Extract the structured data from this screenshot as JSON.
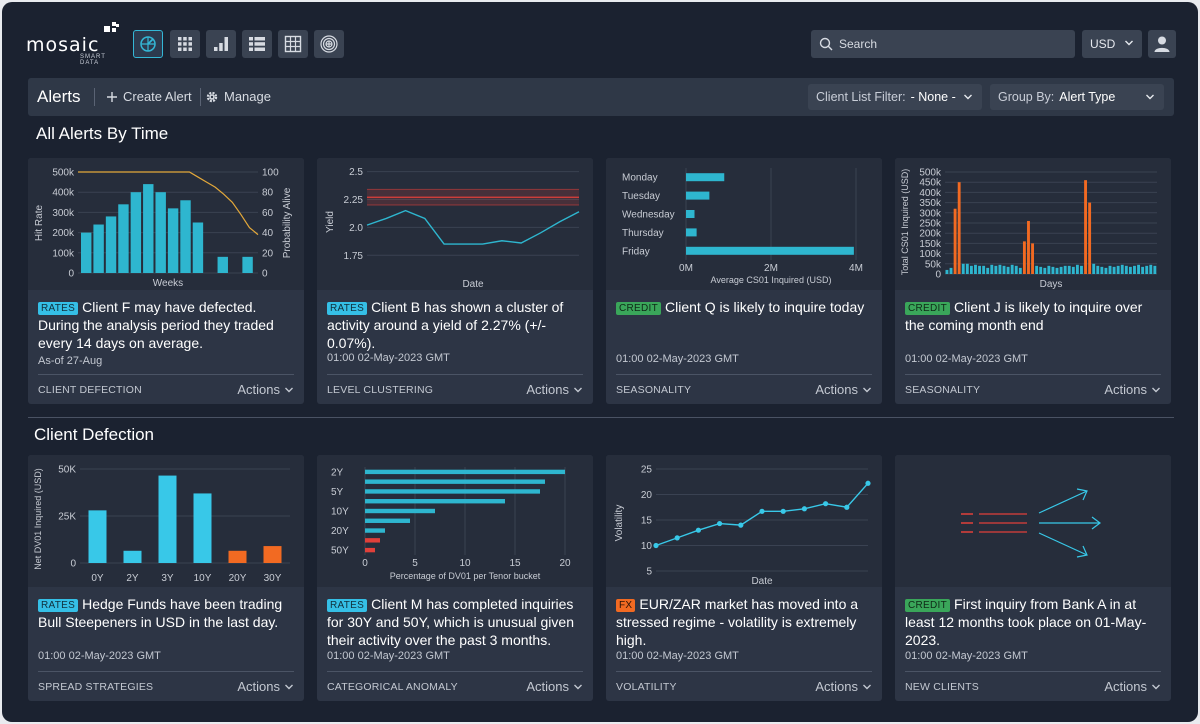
{
  "brand": {
    "name": "mosaic",
    "tagline": "SMART DATA"
  },
  "nav": [
    {
      "name": "radar-icon",
      "active": true
    },
    {
      "name": "grid-dots-icon",
      "active": false
    },
    {
      "name": "bar-chart-icon",
      "active": false
    },
    {
      "name": "list-icon",
      "active": false
    },
    {
      "name": "table-icon",
      "active": false
    },
    {
      "name": "target-icon",
      "active": false
    }
  ],
  "search": {
    "placeholder": "Search"
  },
  "currency": {
    "value": "USD"
  },
  "toolbar": {
    "title": "Alerts",
    "create_label": "Create Alert",
    "manage_label": "Manage",
    "client_filter_label": "Client List Filter:",
    "client_filter_value": "- None -",
    "group_by_label": "Group By:",
    "group_by_value": "Alert Type"
  },
  "sections": [
    {
      "title": "All Alerts By Time",
      "cards": [
        {
          "badge": "RATES",
          "text": "Client F may have defected. During the analysis period they traded every 14 days on average.",
          "meta": "As-of 27-Aug",
          "category": "CLIENT DEFECTION",
          "actions": "Actions"
        },
        {
          "badge": "RATES",
          "text": "Client B has shown a cluster of activity around a yield of 2.27% (+/- 0.07%).",
          "meta": "01:00 02-May-2023 GMT",
          "category": "LEVEL CLUSTERING",
          "actions": "Actions"
        },
        {
          "badge": "CREDIT",
          "text": "Client Q is likely to inquire today",
          "meta": "01:00 02-May-2023 GMT",
          "category": "SEASONALITY",
          "actions": "Actions"
        },
        {
          "badge": "CREDIT",
          "text": "Client J is likely to inquire over the coming month end",
          "meta": "01:00 02-May-2023 GMT",
          "category": "SEASONALITY",
          "actions": "Actions"
        }
      ]
    },
    {
      "title": "Client Defection",
      "cards": [
        {
          "badge": "RATES",
          "text": "Hedge Funds have been trading Bull Steepeners in USD in the last day.",
          "meta": "01:00 02-May-2023 GMT",
          "category": "SPREAD STRATEGIES",
          "actions": "Actions"
        },
        {
          "badge": "RATES",
          "text": "Client M has completed inquiries for 30Y and 50Y, which is unusual given their activity over the past 3 months.",
          "meta": "01:00 02-May-2023 GMT",
          "category": "CATEGORICAL ANOMALY",
          "actions": "Actions"
        },
        {
          "badge": "FX",
          "text": "EUR/ZAR market has moved into a stressed regime - volatility is extremely high.",
          "meta": "01:00 02-May-2023 GMT",
          "category": "VOLATILITY",
          "actions": "Actions"
        },
        {
          "badge": "CREDIT",
          "text": "First inquiry from Bank A in at least 12 months took place on 01-May-2023.",
          "meta": "01:00 02-May-2023 GMT",
          "category": "NEW CLIENTS",
          "actions": "Actions"
        }
      ]
    }
  ],
  "colors": {
    "bg": "#1b2230",
    "card": "#2d3545",
    "chart_bg": "#262d3b",
    "teal": "#2eb6cf",
    "cyan": "#38c8e8",
    "orange": "#f26a22",
    "red": "#e0403a",
    "gold": "#e3a83a"
  },
  "chart_data": [
    {
      "type": "bar",
      "xlabel": "Weeks",
      "ylabel": "Hit Rate",
      "y2label": "Probability Alive",
      "ylim": [
        0,
        500000
      ],
      "y2lim": [
        0,
        100
      ],
      "yticks": [
        "0",
        "100k",
        "200k",
        "300k",
        "400k",
        "500k"
      ],
      "y2ticks": [
        "0",
        "20",
        "40",
        "60",
        "80",
        "100"
      ],
      "values": [
        200000,
        240000,
        280000,
        340000,
        400000,
        440000,
        400000,
        320000,
        360000,
        250000,
        0,
        80000,
        0,
        80000
      ],
      "line": [
        100,
        100,
        100,
        100,
        100,
        100,
        100,
        100,
        100,
        100,
        100,
        100,
        100,
        100,
        95,
        90,
        85,
        78,
        70,
        58,
        45,
        38
      ]
    },
    {
      "type": "line",
      "xlabel": "Date",
      "ylabel": "Yield",
      "ylim": [
        1.6,
        2.55
      ],
      "yticks": [
        "1.75",
        "2.0",
        "2.25",
        "2.5"
      ],
      "band": [
        2.27,
        0.07
      ],
      "values": [
        2.02,
        2.08,
        2.15,
        2.08,
        1.85,
        1.85,
        1.85,
        1.88,
        1.86,
        1.95,
        2.05,
        2.14
      ]
    },
    {
      "type": "bar",
      "orientation": "horizontal",
      "xlabel": "Average CS01 Inquired (USD)",
      "categories": [
        "Monday",
        "Tuesday",
        "Wednesday",
        "Thursday",
        "Friday"
      ],
      "values": [
        900000,
        550000,
        200000,
        250000,
        3950000
      ],
      "xlim": [
        0,
        4000000
      ],
      "xticks": [
        "0M",
        "2M",
        "4M"
      ]
    },
    {
      "type": "bar",
      "xlabel": "Days",
      "ylabel": "Total CS01 Inquired (USD)",
      "ylim": [
        0,
        500000
      ],
      "yticks": [
        "0",
        "50k",
        "100k",
        "150k",
        "200k",
        "250k",
        "300k",
        "350k",
        "400k",
        "450k",
        "500k"
      ],
      "highlight_color": "orange",
      "values": [
        20000,
        30000,
        320000,
        450000,
        50000,
        50000,
        40000,
        45000,
        40000,
        40000,
        30000,
        45000,
        40000,
        45000,
        40000,
        35000,
        45000,
        40000,
        30000,
        160000,
        260000,
        150000,
        40000,
        35000,
        30000,
        40000,
        35000,
        30000,
        35000,
        40000,
        40000,
        35000,
        45000,
        40000,
        460000,
        350000,
        50000,
        40000,
        35000,
        30000,
        40000,
        35000,
        40000,
        45000,
        40000,
        35000,
        40000,
        45000,
        35000,
        40000,
        45000,
        40000
      ],
      "highlights": [
        2,
        3,
        19,
        20,
        21,
        34,
        35
      ]
    },
    {
      "type": "bar",
      "ylabel": "Net DV01 Inquired (USD)",
      "ylim": [
        0,
        50000
      ],
      "yticks": [
        "0",
        "25K",
        "50K"
      ],
      "categories": [
        "0Y",
        "2Y",
        "3Y",
        "10Y",
        "20Y",
        "30Y"
      ],
      "values": [
        28000,
        6500,
        46500,
        37000,
        6500,
        9000
      ],
      "colors": [
        "cyan",
        "cyan",
        "cyan",
        "cyan",
        "orange",
        "orange"
      ]
    },
    {
      "type": "bar",
      "orientation": "horizontal",
      "xlabel": "Percentage of DV01 per Tenor bucket",
      "ylabels": [
        "2Y",
        "5Y",
        "10Y",
        "20Y",
        "50Y"
      ],
      "values": [
        20,
        18,
        17.5,
        14,
        7,
        4.5,
        2,
        1.5,
        1
      ],
      "colors": [
        "teal",
        "teal",
        "teal",
        "teal",
        "teal",
        "teal",
        "teal",
        "red",
        "red"
      ],
      "xlim": [
        0,
        20
      ],
      "xticks": [
        "0",
        "5",
        "10",
        "15",
        "20"
      ]
    },
    {
      "type": "line",
      "xlabel": "Date",
      "ylabel": "Volatility",
      "ylim": [
        5,
        25
      ],
      "yticks": [
        "5",
        "10",
        "15",
        "20",
        "25"
      ],
      "values": [
        10,
        11.5,
        13,
        14.3,
        14,
        16.7,
        16.7,
        17.2,
        18.2,
        17.5,
        22.2
      ]
    }
  ]
}
